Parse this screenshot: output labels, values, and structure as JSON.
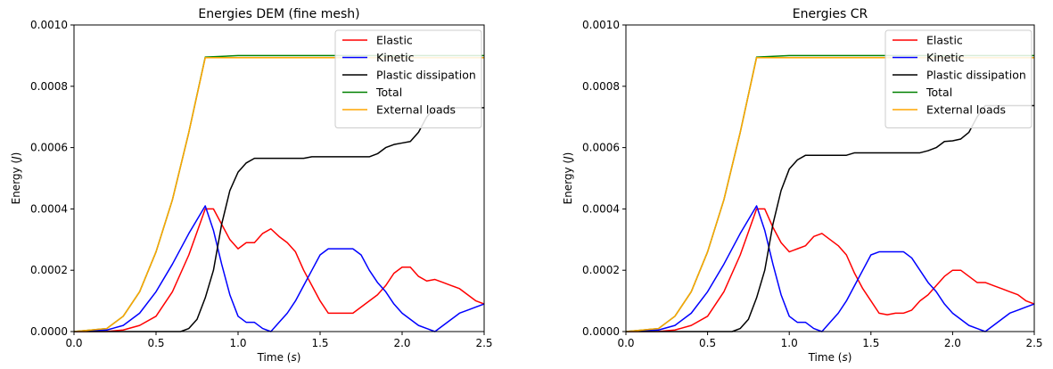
{
  "chart_data": [
    {
      "type": "line",
      "title": "Energies DEM (fine mesh)",
      "xlabel": "Time (s)",
      "xlabel_parts": [
        "Time (",
        "s",
        ")"
      ],
      "ylabel": "Energy (J)",
      "ylabel_parts": [
        "Energy (",
        "J",
        ")"
      ],
      "xlim": [
        0.0,
        2.5
      ],
      "ylim": [
        0.0,
        0.001
      ],
      "xticks": [
        "0.0",
        "0.5",
        "1.0",
        "1.5",
        "2.0",
        "2.5"
      ],
      "yticks": [
        "0.0000",
        "0.0002",
        "0.0004",
        "0.0006",
        "0.0008",
        "0.0010"
      ],
      "grid": false,
      "legend_position": "top-right",
      "series": [
        {
          "name": "Elastic",
          "color": "#ff0000",
          "x": [
            0.0,
            0.2,
            0.3,
            0.4,
            0.5,
            0.6,
            0.7,
            0.8,
            0.85,
            0.9,
            0.95,
            1.0,
            1.05,
            1.1,
            1.15,
            1.2,
            1.25,
            1.3,
            1.35,
            1.4,
            1.45,
            1.5,
            1.55,
            1.6,
            1.65,
            1.7,
            1.75,
            1.8,
            1.85,
            1.9,
            1.95,
            2.0,
            2.05,
            2.1,
            2.15,
            2.2,
            2.25,
            2.3,
            2.35,
            2.4,
            2.45,
            2.5
          ],
          "y": [
            0.0,
            5e-07,
            5e-06,
            2e-05,
            5e-05,
            0.00013,
            0.00025,
            0.0004,
            0.0004,
            0.00035,
            0.0003,
            0.00027,
            0.00029,
            0.00029,
            0.00032,
            0.000335,
            0.00031,
            0.00029,
            0.00026,
            0.0002,
            0.00015,
            0.0001,
            6e-05,
            6e-05,
            6e-05,
            6e-05,
            8e-05,
            0.0001,
            0.00012,
            0.00015,
            0.00019,
            0.00021,
            0.00021,
            0.00018,
            0.000165,
            0.00017,
            0.00016,
            0.00015,
            0.00014,
            0.00012,
            0.0001,
            9e-05
          ]
        },
        {
          "name": "Kinetic",
          "color": "#0000ff",
          "x": [
            0.0,
            0.2,
            0.3,
            0.4,
            0.5,
            0.6,
            0.7,
            0.8,
            0.85,
            0.9,
            0.95,
            1.0,
            1.05,
            1.1,
            1.15,
            1.2,
            1.25,
            1.3,
            1.35,
            1.4,
            1.45,
            1.5,
            1.55,
            1.6,
            1.65,
            1.7,
            1.75,
            1.8,
            1.85,
            1.9,
            1.95,
            2.0,
            2.05,
            2.1,
            2.15,
            2.2,
            2.25,
            2.3,
            2.35,
            2.4,
            2.45,
            2.5
          ],
          "y": [
            0.0,
            5e-06,
            2e-05,
            6e-05,
            0.00013,
            0.00022,
            0.00032,
            0.00041,
            0.00033,
            0.00022,
            0.00012,
            5e-05,
            3e-05,
            3e-05,
            1e-05,
            0.0,
            3e-05,
            6e-05,
            0.0001,
            0.00015,
            0.0002,
            0.00025,
            0.00027,
            0.00027,
            0.00027,
            0.00027,
            0.00025,
            0.0002,
            0.00016,
            0.00013,
            9e-05,
            6e-05,
            4e-05,
            2e-05,
            1e-05,
            0.0,
            2e-05,
            4e-05,
            6e-05,
            7e-05,
            8e-05,
            9e-05
          ]
        },
        {
          "name": "Plastic dissipation",
          "color": "#000000",
          "x": [
            0.0,
            0.65,
            0.7,
            0.75,
            0.8,
            0.85,
            0.9,
            0.95,
            1.0,
            1.05,
            1.1,
            1.2,
            1.4,
            1.45,
            1.6,
            1.8,
            1.85,
            1.9,
            1.95,
            2.0,
            2.05,
            2.1,
            2.15,
            2.2,
            2.5
          ],
          "y": [
            0.0,
            0.0,
            1e-05,
            4e-05,
            0.00011,
            0.0002,
            0.00035,
            0.00046,
            0.00052,
            0.00055,
            0.000565,
            0.000565,
            0.000565,
            0.00057,
            0.00057,
            0.00057,
            0.00058,
            0.0006,
            0.00061,
            0.000615,
            0.00062,
            0.00065,
            0.0007,
            0.00073,
            0.00073
          ]
        },
        {
          "name": "Total",
          "color": "#008000",
          "x": [
            0.0,
            0.2,
            0.3,
            0.4,
            0.5,
            0.6,
            0.7,
            0.8,
            1.0,
            1.5,
            2.0,
            2.5
          ],
          "y": [
            0.0,
            1e-05,
            5e-05,
            0.00013,
            0.00026,
            0.00043,
            0.00065,
            0.000895,
            0.0009,
            0.0009,
            0.0009,
            0.0009
          ]
        },
        {
          "name": "External loads",
          "color": "#ffa500",
          "x": [
            0.0,
            0.2,
            0.3,
            0.4,
            0.5,
            0.6,
            0.7,
            0.8,
            1.0,
            1.5,
            2.0,
            2.5
          ],
          "y": [
            0.0,
            1e-05,
            5e-05,
            0.00013,
            0.00026,
            0.00043,
            0.00065,
            0.000893,
            0.000893,
            0.000893,
            0.000893,
            0.000893
          ]
        }
      ]
    },
    {
      "type": "line",
      "title": "Energies CR",
      "xlabel": "Time (s)",
      "xlabel_parts": [
        "Time (",
        "s",
        ")"
      ],
      "ylabel": "Energy (J)",
      "ylabel_parts": [
        "Energy (",
        "J",
        ")"
      ],
      "xlim": [
        0.0,
        2.5
      ],
      "ylim": [
        0.0,
        0.001
      ],
      "xticks": [
        "0.0",
        "0.5",
        "1.0",
        "1.5",
        "2.0",
        "2.5"
      ],
      "yticks": [
        "0.0000",
        "0.0002",
        "0.0004",
        "0.0006",
        "0.0008",
        "0.0010"
      ],
      "grid": false,
      "legend_position": "top-right",
      "series": [
        {
          "name": "Elastic",
          "color": "#ff0000",
          "x": [
            0.0,
            0.2,
            0.3,
            0.4,
            0.5,
            0.6,
            0.7,
            0.8,
            0.85,
            0.9,
            0.95,
            1.0,
            1.05,
            1.1,
            1.15,
            1.2,
            1.25,
            1.3,
            1.35,
            1.4,
            1.45,
            1.5,
            1.55,
            1.6,
            1.65,
            1.7,
            1.75,
            1.8,
            1.85,
            1.9,
            1.95,
            2.0,
            2.05,
            2.1,
            2.15,
            2.2,
            2.25,
            2.3,
            2.35,
            2.4,
            2.45,
            2.5
          ],
          "y": [
            0.0,
            5e-07,
            5e-06,
            2e-05,
            5e-05,
            0.00013,
            0.00025,
            0.0004,
            0.0004,
            0.00034,
            0.00029,
            0.00026,
            0.00027,
            0.00028,
            0.00031,
            0.00032,
            0.0003,
            0.00028,
            0.00025,
            0.00019,
            0.00014,
            0.0001,
            6e-05,
            5.5e-05,
            6e-05,
            6e-05,
            7e-05,
            0.0001,
            0.00012,
            0.00015,
            0.00018,
            0.0002,
            0.0002,
            0.00018,
            0.00016,
            0.00016,
            0.00015,
            0.00014,
            0.00013,
            0.00012,
            0.0001,
            9e-05
          ]
        },
        {
          "name": "Kinetic",
          "color": "#0000ff",
          "x": [
            0.0,
            0.2,
            0.3,
            0.4,
            0.5,
            0.6,
            0.7,
            0.8,
            0.85,
            0.9,
            0.95,
            1.0,
            1.05,
            1.1,
            1.15,
            1.2,
            1.25,
            1.3,
            1.35,
            1.4,
            1.45,
            1.5,
            1.55,
            1.6,
            1.65,
            1.7,
            1.75,
            1.8,
            1.85,
            1.9,
            1.95,
            2.0,
            2.05,
            2.1,
            2.15,
            2.2,
            2.25,
            2.3,
            2.35,
            2.4,
            2.45,
            2.5
          ],
          "y": [
            0.0,
            5e-06,
            2e-05,
            6e-05,
            0.00013,
            0.00022,
            0.00032,
            0.00041,
            0.00033,
            0.00022,
            0.00012,
            5e-05,
            3e-05,
            3e-05,
            1e-05,
            0.0,
            3e-05,
            6e-05,
            0.0001,
            0.00015,
            0.0002,
            0.00025,
            0.00026,
            0.00026,
            0.00026,
            0.00026,
            0.00024,
            0.0002,
            0.00016,
            0.00013,
            9e-05,
            6e-05,
            4e-05,
            2e-05,
            1e-05,
            0.0,
            2e-05,
            4e-05,
            6e-05,
            7e-05,
            8e-05,
            9e-05
          ]
        },
        {
          "name": "Plastic dissipation",
          "color": "#000000",
          "x": [
            0.0,
            0.65,
            0.7,
            0.75,
            0.8,
            0.85,
            0.9,
            0.95,
            1.0,
            1.05,
            1.1,
            1.2,
            1.35,
            1.4,
            1.6,
            1.8,
            1.85,
            1.9,
            1.95,
            2.0,
            2.05,
            2.1,
            2.15,
            2.2,
            2.5
          ],
          "y": [
            0.0,
            0.0,
            1e-05,
            4e-05,
            0.00011,
            0.0002,
            0.00035,
            0.00046,
            0.00053,
            0.00056,
            0.000575,
            0.000575,
            0.000575,
            0.000583,
            0.000583,
            0.000583,
            0.00059,
            0.0006,
            0.00062,
            0.000622,
            0.000628,
            0.00065,
            0.0007,
            0.000737,
            0.000737
          ]
        },
        {
          "name": "Total",
          "color": "#008000",
          "x": [
            0.0,
            0.2,
            0.3,
            0.4,
            0.5,
            0.6,
            0.7,
            0.8,
            1.0,
            1.5,
            2.0,
            2.5
          ],
          "y": [
            0.0,
            1e-05,
            5e-05,
            0.00013,
            0.00026,
            0.00043,
            0.00065,
            0.000895,
            0.0009,
            0.0009,
            0.0009,
            0.0009
          ]
        },
        {
          "name": "External loads",
          "color": "#ffa500",
          "x": [
            0.0,
            0.2,
            0.3,
            0.4,
            0.5,
            0.6,
            0.7,
            0.8,
            1.0,
            1.5,
            2.0,
            2.5
          ],
          "y": [
            0.0,
            1e-05,
            5e-05,
            0.00013,
            0.00026,
            0.00043,
            0.00065,
            0.000893,
            0.000893,
            0.000893,
            0.000893,
            0.000893
          ]
        }
      ]
    }
  ]
}
